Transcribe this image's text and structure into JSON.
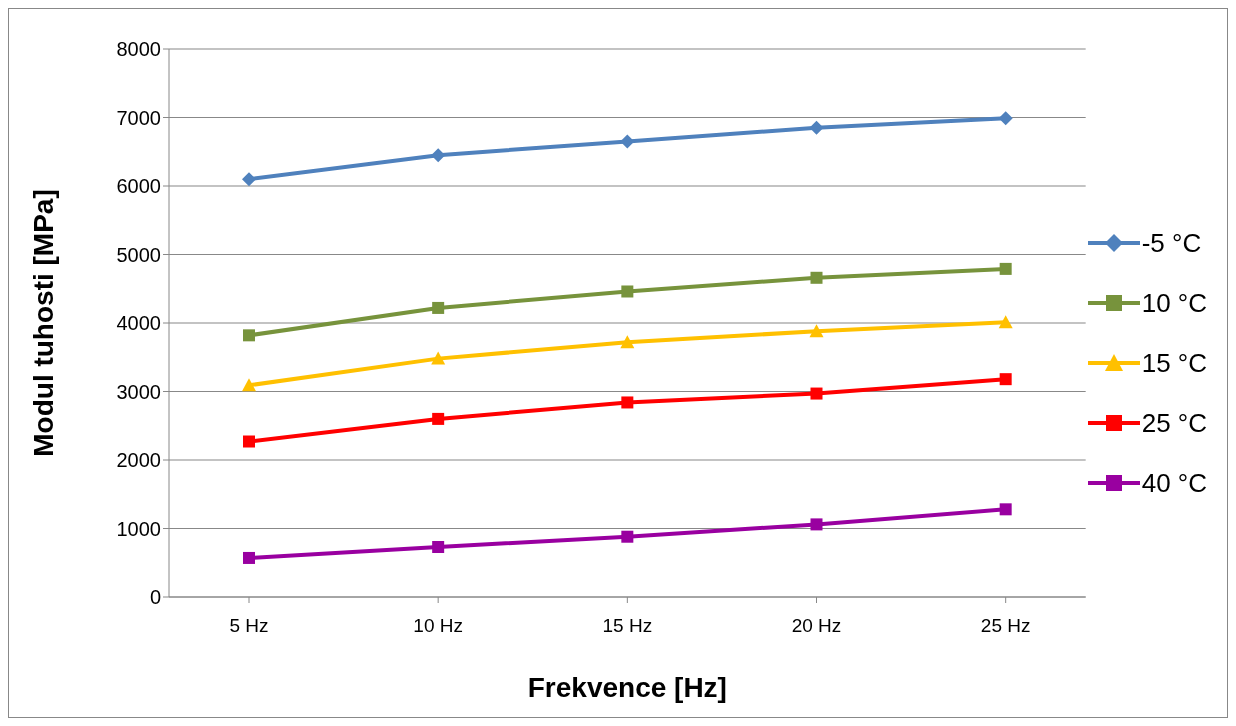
{
  "chart_data": {
    "type": "line",
    "xlabel": "Frekvence [Hz]",
    "ylabel": "Modul tuhosti [MPa]",
    "categories": [
      "5 Hz",
      "10 Hz",
      "15 Hz",
      "20 Hz",
      "25 Hz"
    ],
    "ylim": [
      0,
      8000
    ],
    "yticks": [
      0,
      1000,
      2000,
      3000,
      4000,
      5000,
      6000,
      7000,
      8000
    ],
    "grid": "y",
    "legend": "right",
    "series": [
      {
        "name": "-5 °C",
        "color": "#4f81bd",
        "marker": "diamond",
        "values": [
          6100,
          6450,
          6650,
          6850,
          6990
        ]
      },
      {
        "name": "10 °C",
        "color": "#77933c",
        "marker": "square",
        "values": [
          3820,
          4220,
          4460,
          4660,
          4790
        ]
      },
      {
        "name": "15 °C",
        "color": "#ffc000",
        "marker": "triangle",
        "values": [
          3090,
          3480,
          3720,
          3880,
          4010
        ]
      },
      {
        "name": "25 °C",
        "color": "#ff0000",
        "marker": "square",
        "values": [
          2270,
          2600,
          2840,
          2970,
          3180
        ]
      },
      {
        "name": "40 °C",
        "color": "#9900a0",
        "marker": "square",
        "values": [
          570,
          730,
          880,
          1060,
          1280
        ]
      }
    ]
  }
}
